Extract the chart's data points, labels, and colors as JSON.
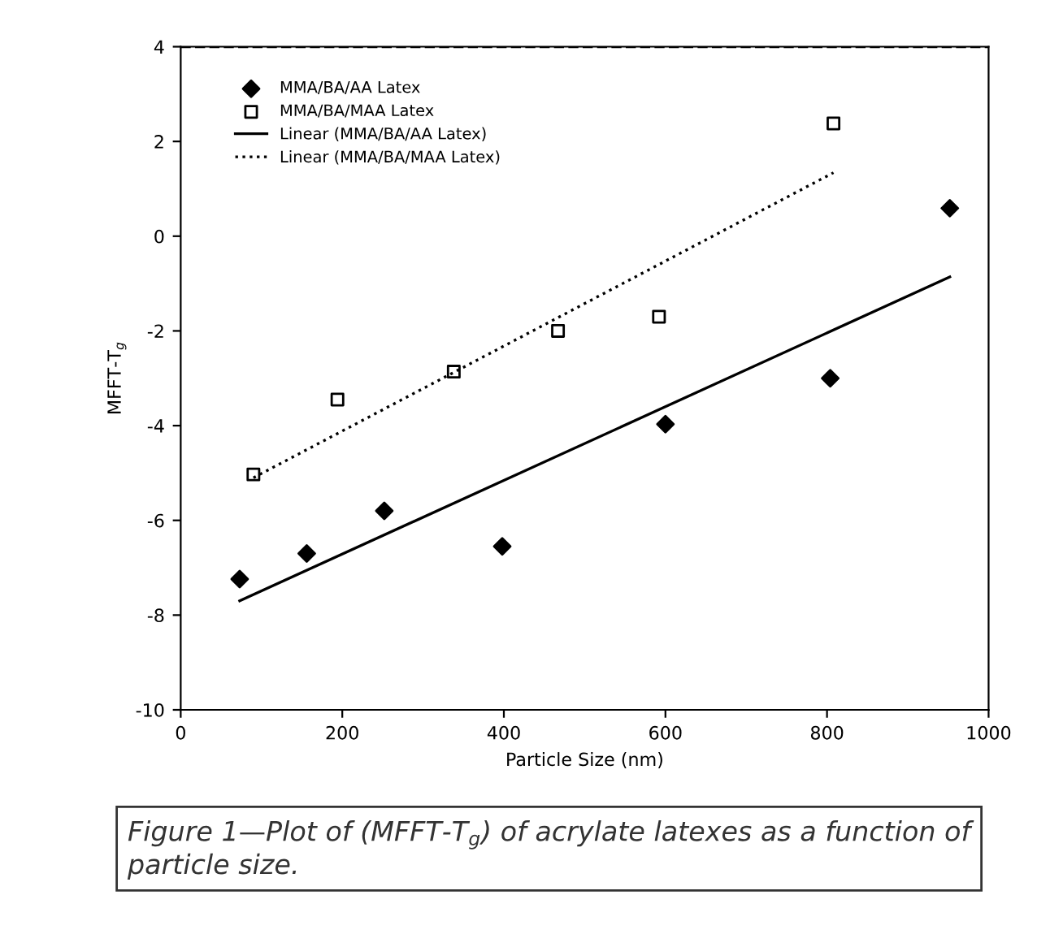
{
  "chart_data": {
    "type": "scatter",
    "xlabel": "Particle Size (nm)",
    "ylabel": "MFFT-T$_{g}$",
    "annotations": [
      "Figure 1—Plot of (MFFT-T$_{g}$) of acrylate latexes as a function of particle size."
    ],
    "series": [
      {
        "name": "MMA/BA/AA Latex",
        "marker": "diamond",
        "color": "#000000",
        "x": [
          73,
          156,
          252,
          398,
          600,
          804,
          952
        ],
        "values": [
          -7.24,
          -6.7,
          -5.8,
          -6.55,
          -3.97,
          -3.0,
          0.59
        ]
      },
      {
        "name": "MMA/BA/MAA Latex",
        "marker": "square",
        "color": "#000000",
        "x": [
          90,
          194,
          338,
          467,
          592,
          808
        ],
        "values": [
          -5.03,
          -3.45,
          -2.86,
          -2.0,
          -1.7,
          2.38
        ]
      },
      {
        "name": "Linear (MMA/BA/AA Latex)",
        "type": "line",
        "line_style": "solid",
        "color": "#000000",
        "x": [
          73,
          952
        ],
        "values": [
          -7.7,
          -0.86
        ]
      },
      {
        "name": "Linear (MMA/BA/MAA Latex)",
        "type": "line",
        "line_style": "dotted",
        "color": "#000000",
        "x": [
          90,
          808
        ],
        "values": [
          -5.1,
          1.34
        ]
      }
    ],
    "ref_lines": [
      {
        "axis": "y",
        "value": 4,
        "line_style": "dashed",
        "color": "#000000"
      }
    ],
    "xlim": [
      0,
      1000
    ],
    "xticks": [
      0,
      200,
      400,
      600,
      800,
      1000
    ],
    "ylim": [
      -10,
      4
    ],
    "yticks": [
      -10,
      -8,
      -6,
      -4,
      -2,
      0,
      2,
      4
    ],
    "grid": false,
    "legend": "top left"
  }
}
